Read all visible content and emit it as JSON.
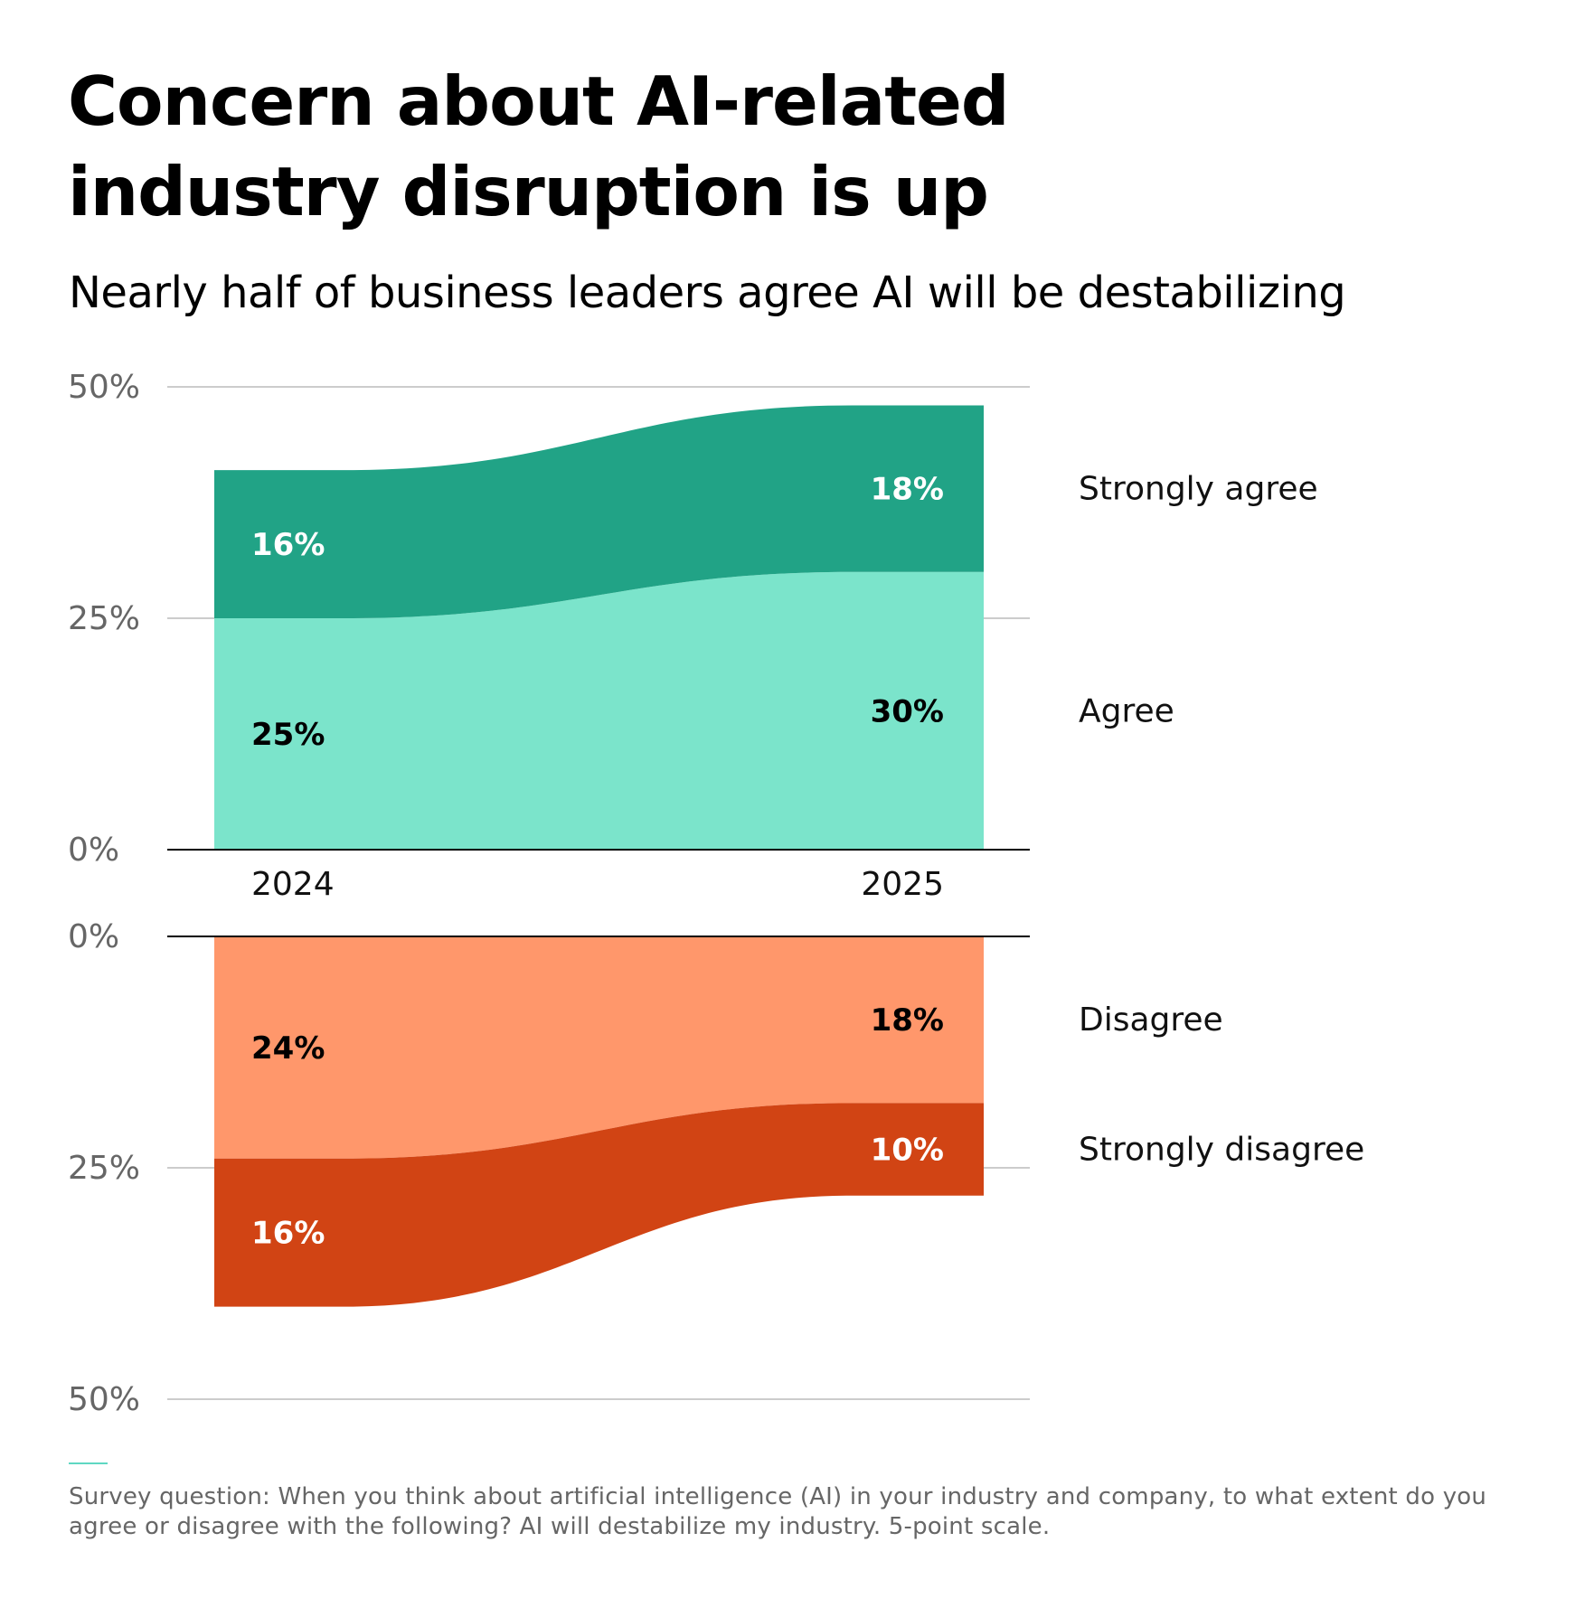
{
  "title": "Concern about AI-related industry disruption is up",
  "subtitle": "Nearly half of business leaders agree AI will be destabilizing",
  "note": "Survey question: When you think about artificial intelligence (AI) in your industry and company, to what extent do you agree or disagree with the following? AI will destabilize my industry. 5-point scale.",
  "colors": {
    "strongly_agree": "#21a386",
    "agree": "#7be4cb",
    "disagree": "#ff976b",
    "strongly_disagree": "#d14414",
    "grid": "#cccccc",
    "baseline": "#000000"
  },
  "chart_data": {
    "type": "area",
    "categories": [
      "2024",
      "2025"
    ],
    "top_panel": {
      "y_ticks": [
        "0%",
        "25%",
        "50%"
      ],
      "ylim": [
        0,
        50
      ],
      "series": [
        {
          "name": "Agree",
          "values": [
            25,
            30
          ],
          "labels": [
            "25%",
            "30%"
          ]
        },
        {
          "name": "Strongly agree",
          "values": [
            16,
            18
          ],
          "labels": [
            "16%",
            "18%"
          ]
        }
      ]
    },
    "bottom_panel": {
      "y_ticks": [
        "0%",
        "25%",
        "50%"
      ],
      "ylim": [
        0,
        50
      ],
      "direction": "downward",
      "series": [
        {
          "name": "Disagree",
          "values": [
            24,
            18
          ],
          "labels": [
            "24%",
            "18%"
          ]
        },
        {
          "name": "Strongly disagree",
          "values": [
            16,
            10
          ],
          "labels": [
            "16%",
            "10%"
          ]
        }
      ]
    },
    "legend_placement": "right",
    "grid": true
  }
}
